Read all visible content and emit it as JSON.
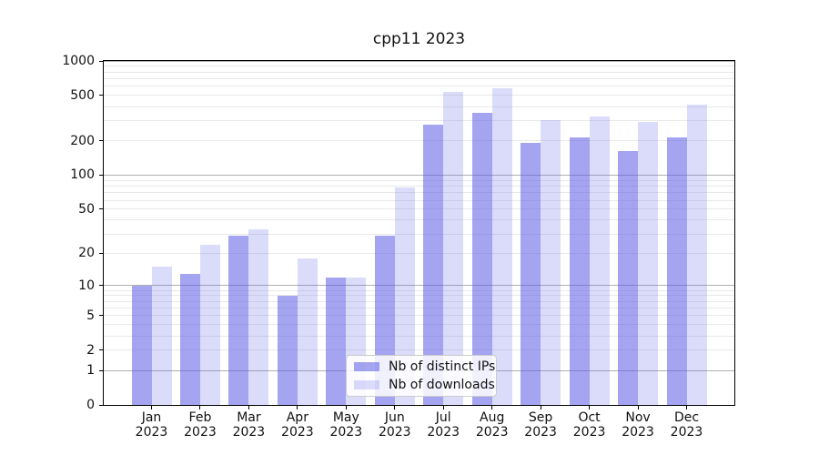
{
  "title": "cpp11 2023",
  "chart_data": {
    "type": "bar",
    "title": "cpp11 2023",
    "categories": [
      "Jan 2023",
      "Feb 2023",
      "Mar 2023",
      "Apr 2023",
      "May 2023",
      "Jun 2023",
      "Jul 2023",
      "Aug 2023",
      "Sep 2023",
      "Oct 2023",
      "Nov 2023",
      "Dec 2023"
    ],
    "month_labels": [
      "Jan",
      "Feb",
      "Mar",
      "Apr",
      "May",
      "Jun",
      "Jul",
      "Aug",
      "Sep",
      "Oct",
      "Nov",
      "Dec"
    ],
    "year_label": "2023",
    "series": [
      {
        "name": "Nb of distinct IPs",
        "key": "ips",
        "color": "#a5a5f2",
        "fill": "rgba(90,90,230,0.55)",
        "values": [
          10,
          13,
          29,
          8,
          12,
          29,
          280,
          350,
          193,
          215,
          164,
          215
        ]
      },
      {
        "name": "Nb of downloads",
        "key": "downloads",
        "color": "#dbdbf9",
        "fill": "rgba(90,90,230,0.22)",
        "values": [
          15,
          24,
          33,
          18,
          12,
          78,
          540,
          580,
          305,
          325,
          295,
          415
        ]
      }
    ],
    "yscale": "log1p",
    "ylim": [
      0,
      1000
    ],
    "yticks": [
      0,
      1,
      2,
      5,
      10,
      20,
      50,
      100,
      200,
      500,
      1000
    ],
    "grid": true,
    "legend_position": "lower center"
  },
  "legend": {
    "items": [
      {
        "label": "Nb of distinct IPs",
        "swatch": "#a5a5f2"
      },
      {
        "label": "Nb of downloads",
        "swatch": "#dbdbf9"
      }
    ]
  },
  "colors": {
    "background": "#ffffff",
    "axis": "#000000",
    "grid_major": "#b0b0b0",
    "grid_minor": "#e9e9e9",
    "bar_dark": "#a5a5f2",
    "bar_light": "#dbdbf9",
    "text": "#111111"
  }
}
